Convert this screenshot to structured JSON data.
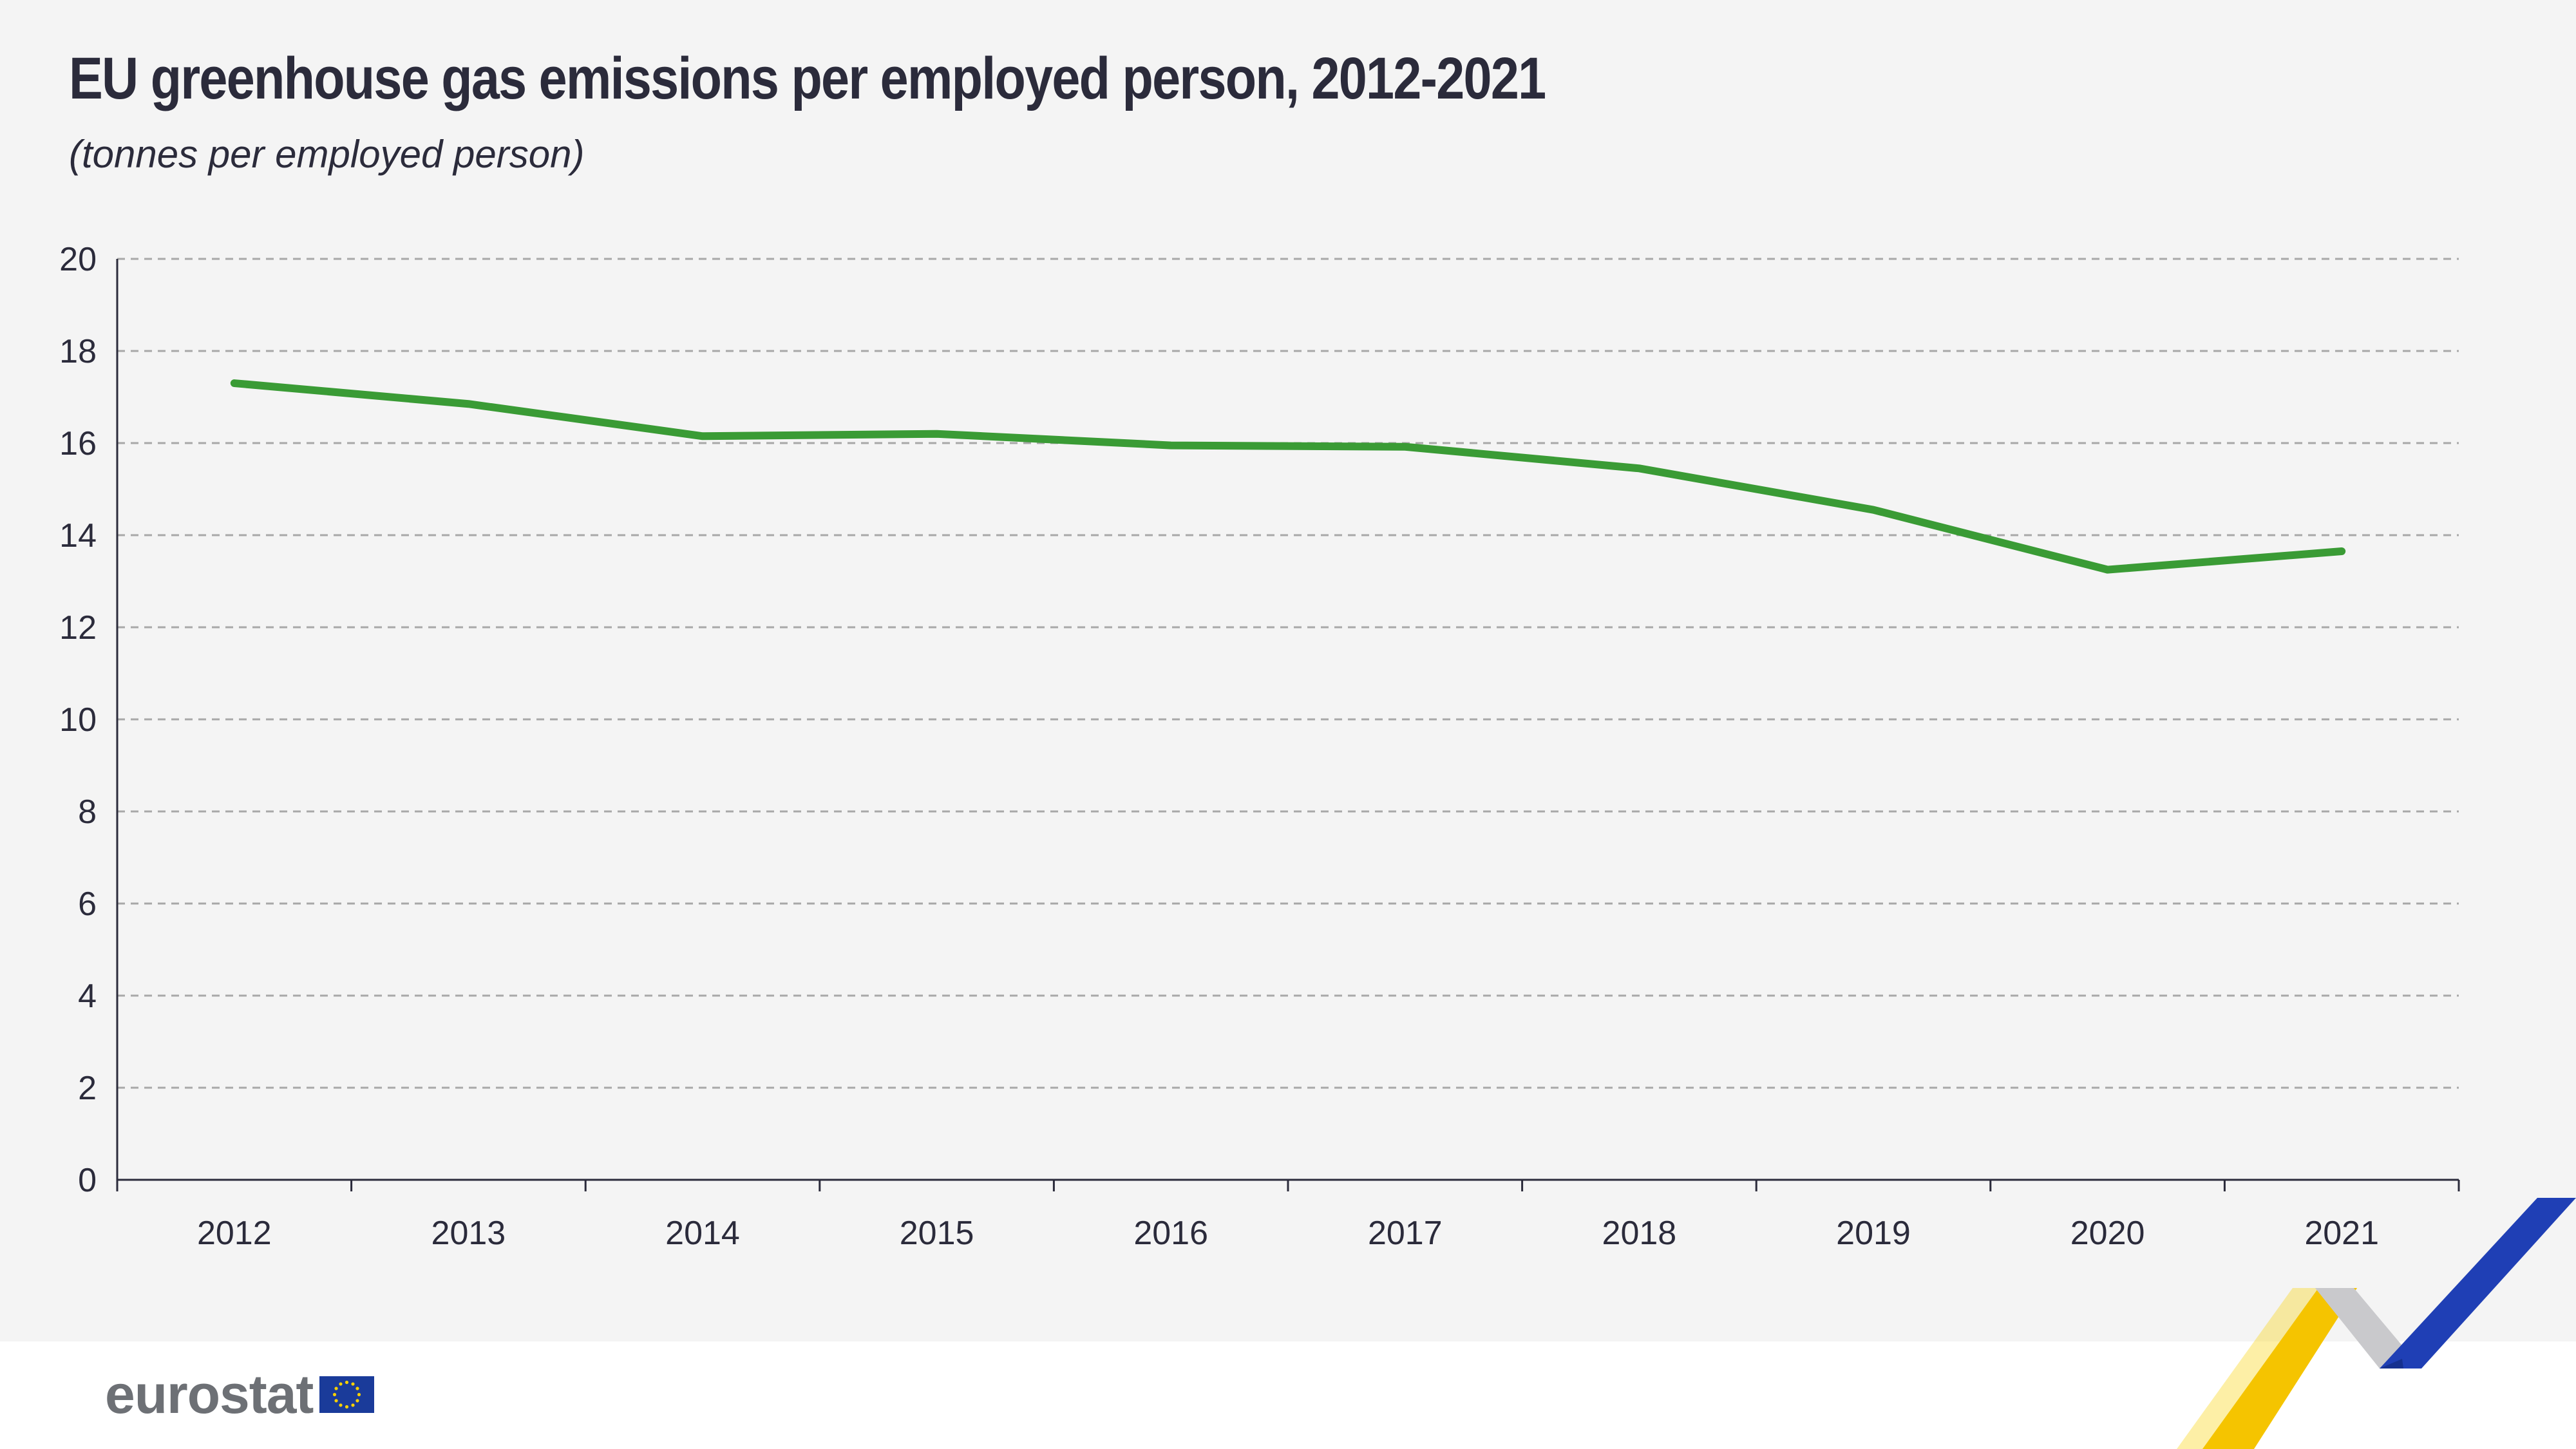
{
  "header": {
    "title": "EU greenhouse gas emissions per employed person, 2012-2021",
    "subtitle": "(tonnes per employed person)"
  },
  "brand": {
    "logo_text": "eurostat",
    "accent_color": "#3a9b35"
  },
  "chart_data": {
    "type": "line",
    "title": "EU greenhouse gas emissions per employed person, 2012-2021",
    "subtitle": "(tonnes per employed person)",
    "xlabel": "",
    "ylabel": "",
    "categories": [
      "2012",
      "2013",
      "2014",
      "2015",
      "2016",
      "2017",
      "2018",
      "2019",
      "2020",
      "2021"
    ],
    "series": [
      {
        "values": [
          17.3,
          16.85,
          16.15,
          16.2,
          15.95,
          15.92,
          15.45,
          14.55,
          13.25,
          13.65
        ],
        "color": "#3a9b35"
      }
    ],
    "ylim": [
      0,
      20
    ],
    "yticks": [
      "0",
      "2",
      "4",
      "6",
      "8",
      "10",
      "12",
      "14",
      "16",
      "18",
      "20"
    ],
    "grid": true,
    "legend": "none"
  }
}
